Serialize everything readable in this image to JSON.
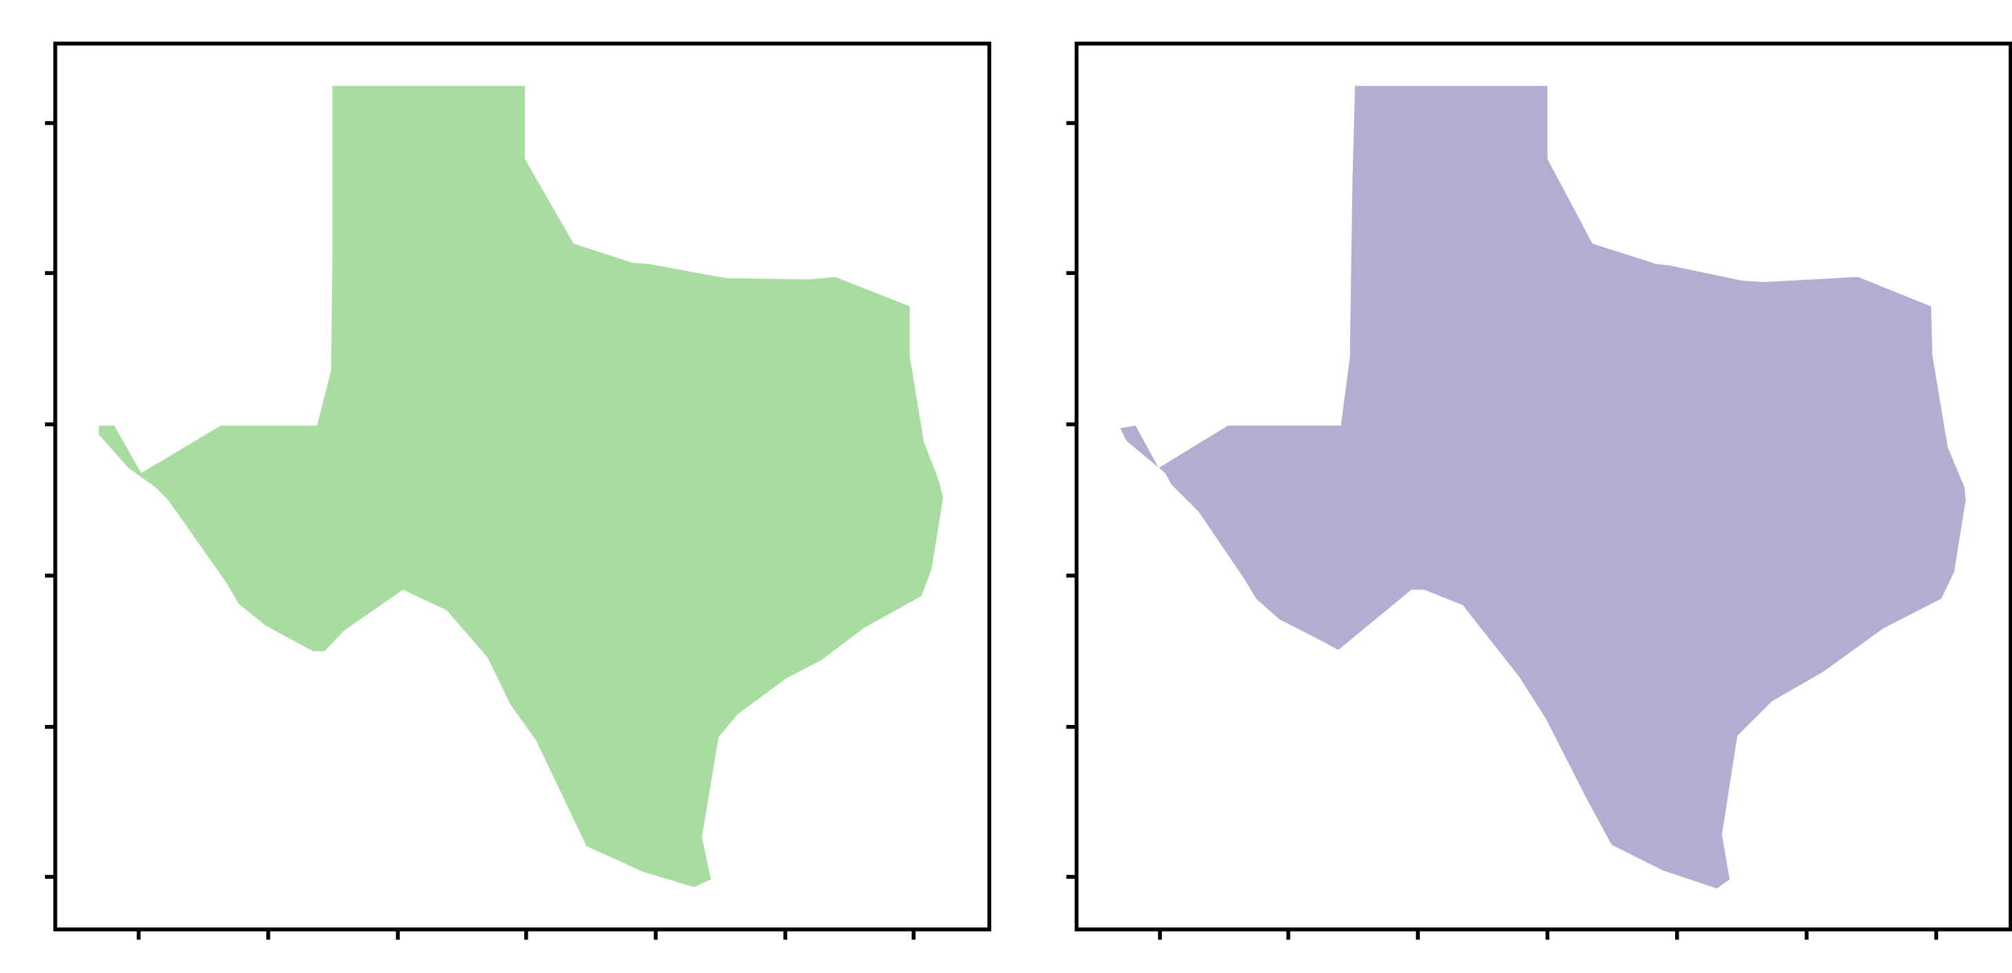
{
  "chart_data": [
    {
      "type": "map",
      "panel": "left",
      "region_color": "#a8dca0",
      "x_ticks": 7,
      "y_ticks": 6,
      "tick_labels": false,
      "grid": false,
      "legend": "none"
    },
    {
      "type": "map",
      "panel": "right",
      "region_color": "#b3add2",
      "x_ticks": 7,
      "y_ticks": 6,
      "tick_labels": false,
      "grid": false,
      "legend": "none"
    }
  ]
}
